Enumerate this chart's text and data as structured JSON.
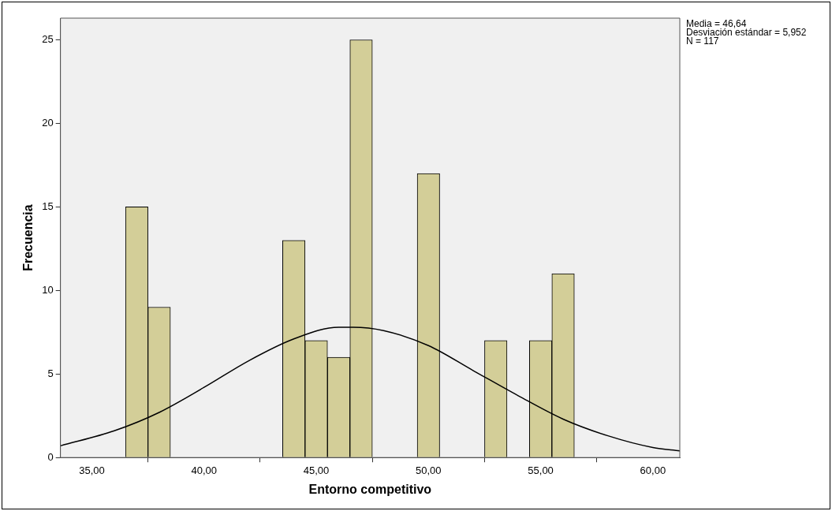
{
  "chart_data": {
    "type": "histogram",
    "xlabel": "Entorno competitivo",
    "ylabel": "Frecuencia",
    "bins": [
      36.5,
      37.5,
      38.5,
      39.5,
      40.5,
      41.5,
      42.5,
      43.5,
      44.5,
      45.5,
      46.5,
      47.5,
      48.5,
      49.5,
      50.5,
      51.5,
      52.5,
      53.5,
      54.5,
      55.5,
      56.5
    ],
    "values": [
      15,
      9,
      0,
      0,
      0,
      0,
      0,
      13,
      7,
      6,
      25,
      0,
      0,
      17,
      0,
      0,
      7,
      0,
      7,
      11
    ],
    "color": "#d3ce98",
    "series": [
      {
        "type": "line",
        "color": "#000000",
        "x": [
          33.6,
          36,
          38,
          40,
          42,
          44,
          46,
          46.64,
          48,
          50,
          52,
          54,
          56,
          58,
          60,
          61.2
        ],
        "values": [
          0.7,
          1.6,
          2.7,
          4.2,
          5.8,
          7.1,
          7.8,
          7.8,
          7.6,
          6.7,
          5.2,
          3.7,
          2.3,
          1.3,
          0.6,
          0.4
        ]
      }
    ],
    "xlim": [
      33.6,
      61.2
    ],
    "xticks": [
      {
        "value": 35,
        "label": "35,00"
      },
      {
        "value": 40,
        "label": "40,00"
      },
      {
        "value": 45,
        "label": "45,00"
      },
      {
        "value": 50,
        "label": "50,00"
      },
      {
        "value": 55,
        "label": "55,00"
      },
      {
        "value": 60,
        "label": "60,00"
      }
    ],
    "ylim": [
      0,
      26.3
    ],
    "yticks": [
      0,
      5,
      10,
      15,
      20,
      25
    ],
    "grid": false,
    "legend": false,
    "marker": "none",
    "annotations": [
      "Media = 46,64",
      "Desviación estándar = 5,952",
      "N = 117"
    ]
  }
}
